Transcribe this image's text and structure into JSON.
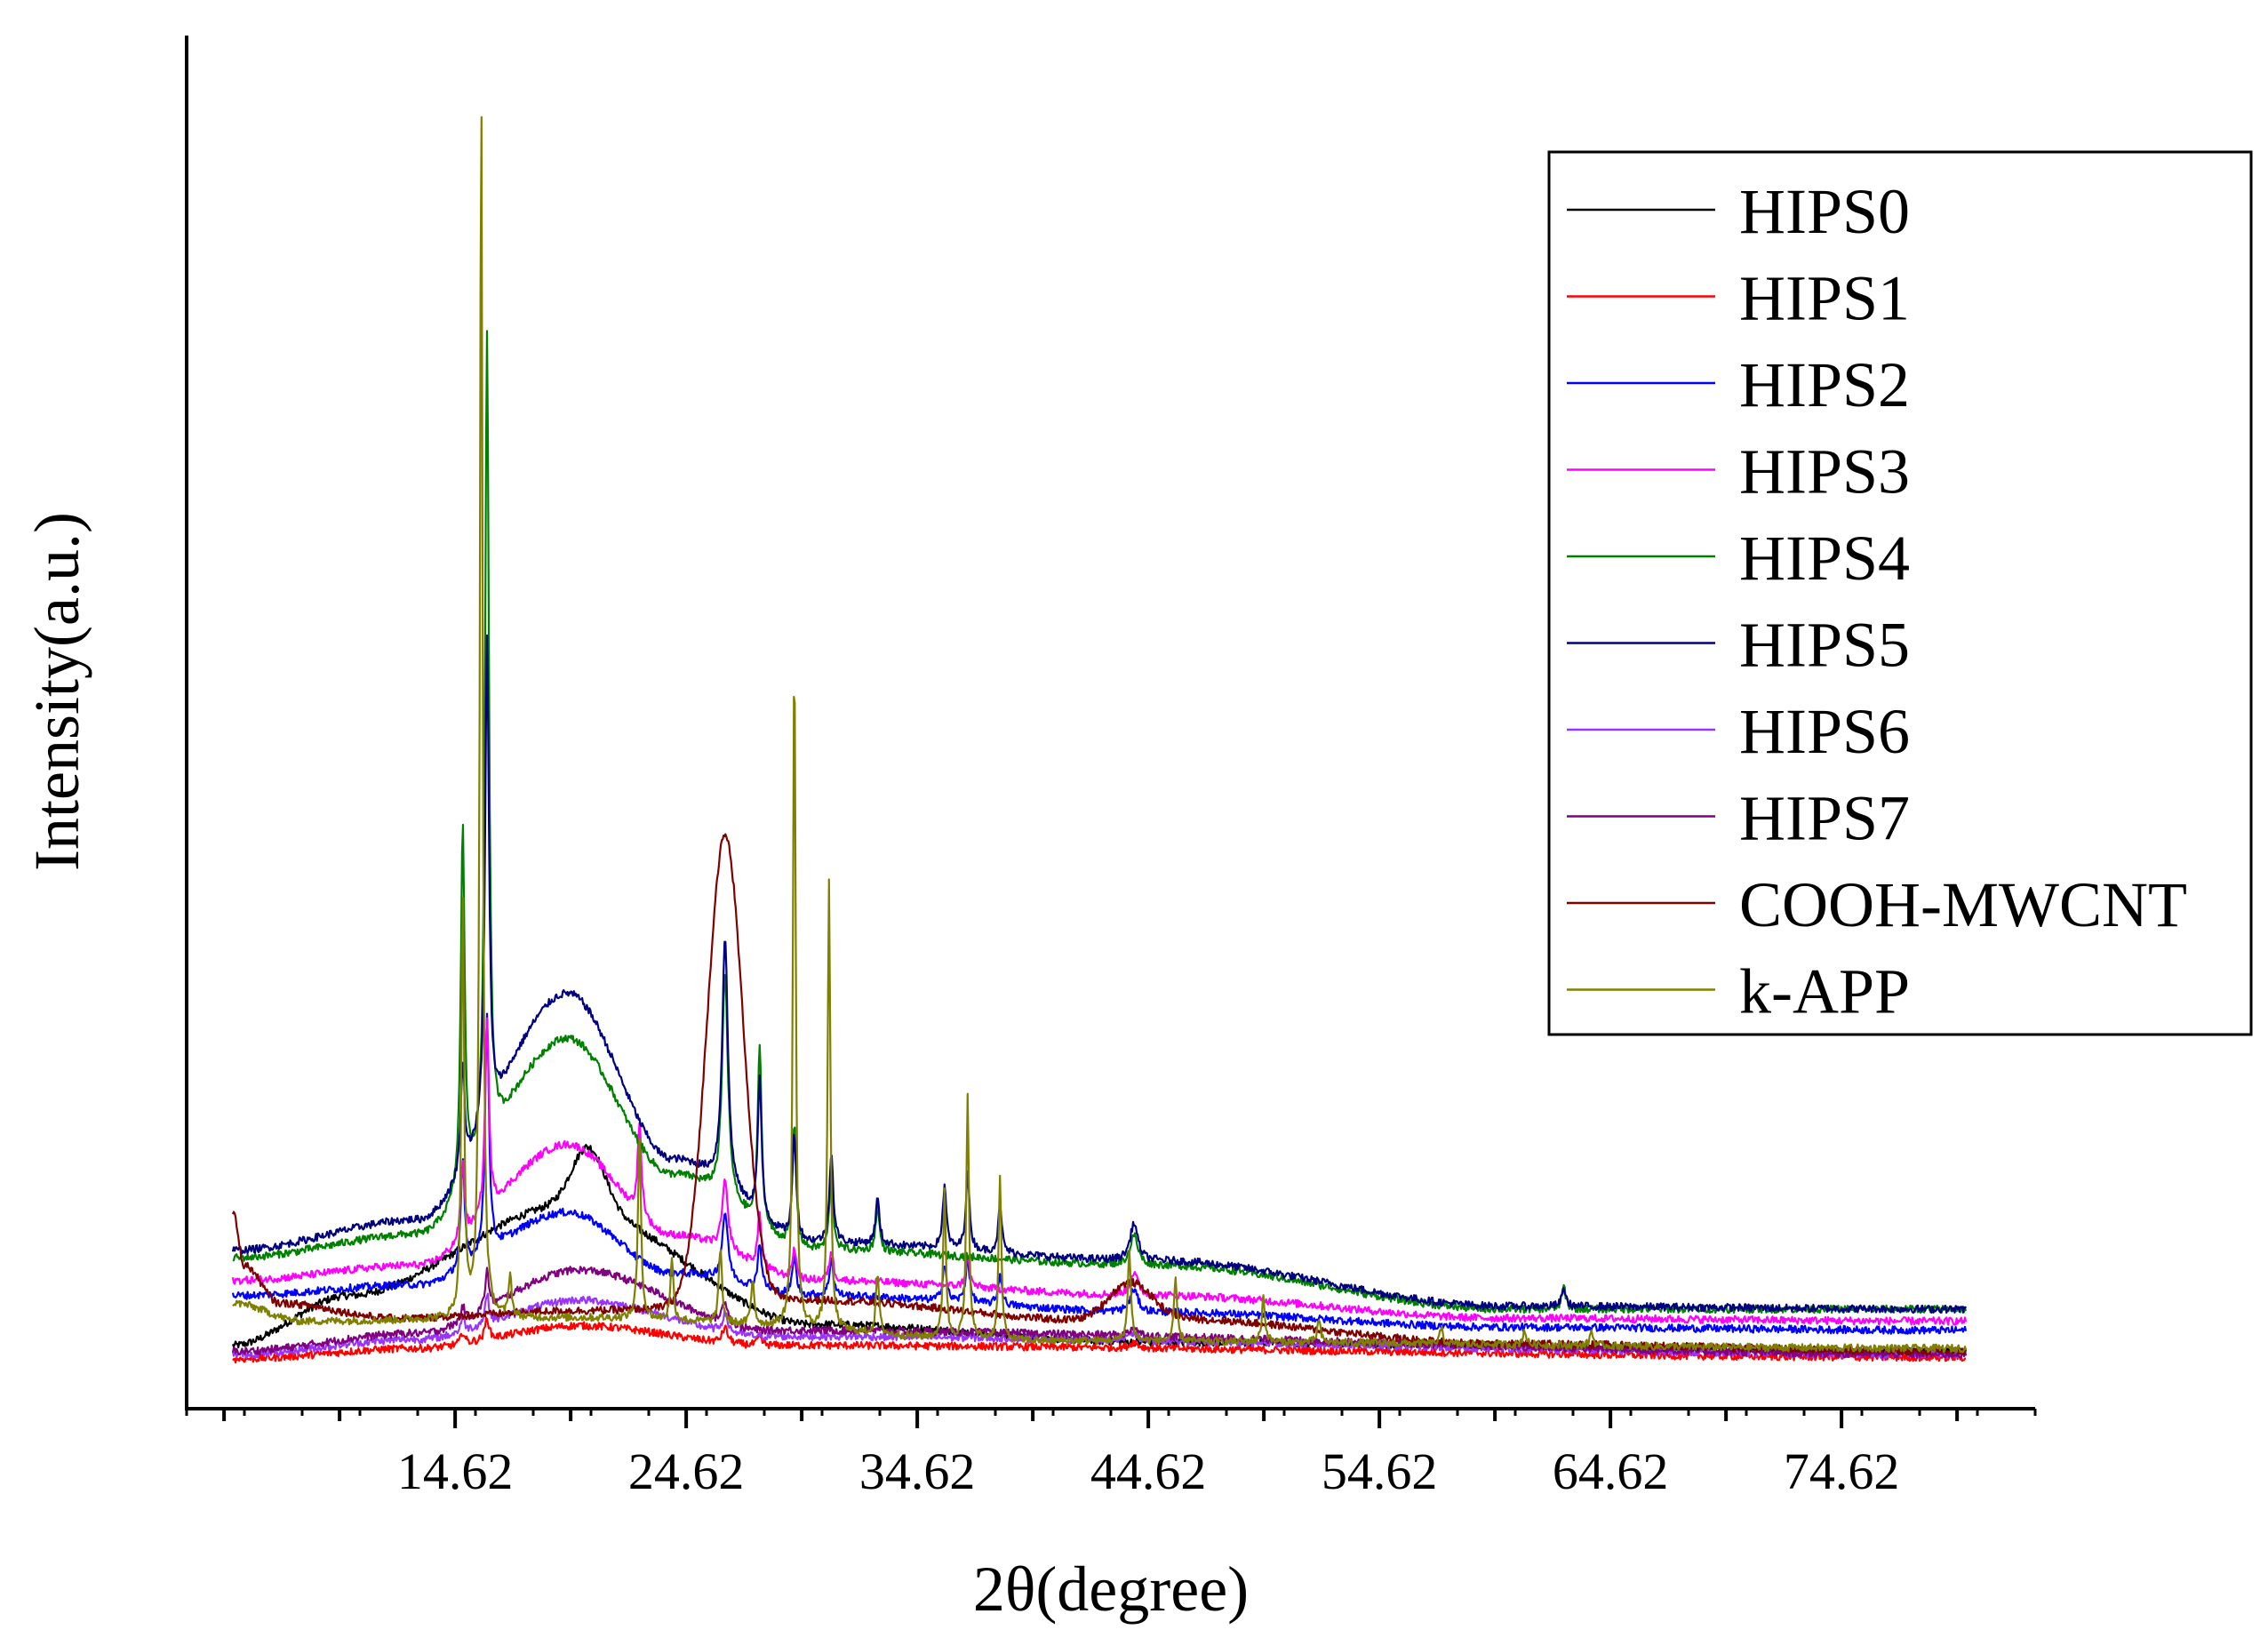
{
  "chart_data": {
    "type": "line",
    "title": "",
    "xlabel": "2θ(degree)",
    "ylabel": "Intensity(a.u.)",
    "xlim": [
      3.0,
      83.0
    ],
    "ylim": [
      -0.3,
      8.8
    ],
    "x_tick_labels": [
      "14.62",
      "24.62",
      "34.62",
      "44.62",
      "54.62",
      "64.62",
      "74.62"
    ],
    "x_ticks": [
      14.62,
      24.62,
      34.62,
      44.62,
      54.62,
      64.62,
      74.62
    ],
    "x_minor_ticks": [
      4.62,
      9.62,
      19.62,
      29.62,
      39.62,
      49.62,
      59.62,
      69.62,
      79.62
    ],
    "x_range": [
      5.0,
      80.0
    ],
    "legend": {
      "position": "top-right"
    },
    "series": [
      {
        "name": "HIPS0",
        "color": "#000000",
        "baseline": [
          [
            5,
            0.12
          ],
          [
            10,
            0.45
          ],
          [
            19.5,
            1.05
          ],
          [
            30,
            0.26
          ],
          [
            45,
            0.14
          ],
          [
            80,
            0.08
          ]
        ],
        "humps": [
          [
            20.4,
            0.4,
            1.0
          ]
        ],
        "peaks": []
      },
      {
        "name": "HIPS1",
        "color": "#ff0000",
        "baseline": [
          [
            5,
            0.03
          ],
          [
            13,
            0.1
          ],
          [
            20,
            0.25
          ],
          [
            28,
            0.12
          ],
          [
            80,
            0.04
          ]
        ],
        "humps": [],
        "peaks": [
          [
            14.95,
            0.08,
            0.1
          ],
          [
            16.0,
            0.15,
            0.1
          ],
          [
            26.3,
            0.1,
            0.15
          ],
          [
            27.8,
            0.06,
            0.1
          ],
          [
            44.0,
            0.04,
            0.2
          ]
        ]
      },
      {
        "name": "HIPS2",
        "color": "#0000ff",
        "baseline": [
          [
            5,
            0.45
          ],
          [
            13,
            0.52
          ],
          [
            19.5,
            1.0
          ],
          [
            24,
            0.6
          ],
          [
            30,
            0.45
          ],
          [
            45,
            0.34
          ],
          [
            60,
            0.24
          ],
          [
            80,
            0.22
          ]
        ],
        "humps": [],
        "peaks": [
          [
            14.95,
            0.7,
            0.1
          ],
          [
            16.0,
            1.6,
            0.1
          ],
          [
            26.3,
            0.45,
            0.15
          ],
          [
            27.8,
            0.3,
            0.1
          ],
          [
            29.3,
            0.25,
            0.1
          ],
          [
            30.9,
            0.25,
            0.1
          ],
          [
            35.8,
            0.25,
            0.1
          ],
          [
            36.8,
            0.3,
            0.1
          ],
          [
            38.2,
            0.2,
            0.1
          ],
          [
            44.0,
            0.15,
            0.2
          ]
        ]
      },
      {
        "name": "HIPS3",
        "color": "#ff00ff",
        "baseline": [
          [
            5,
            0.55
          ],
          [
            13,
            0.65
          ],
          [
            19.5,
            1.45
          ],
          [
            24,
            0.85
          ],
          [
            30,
            0.55
          ],
          [
            45,
            0.45
          ],
          [
            60,
            0.3
          ],
          [
            80,
            0.28
          ]
        ],
        "humps": [],
        "peaks": [
          [
            14.95,
            0.5,
            0.1
          ],
          [
            16.0,
            1.3,
            0.1
          ],
          [
            22.6,
            0.6,
            0.1
          ],
          [
            26.3,
            0.45,
            0.15
          ],
          [
            27.8,
            0.35,
            0.1
          ],
          [
            29.3,
            0.2,
            0.1
          ],
          [
            30.9,
            0.2,
            0.1
          ],
          [
            36.8,
            0.2,
            0.1
          ],
          [
            44.0,
            0.15,
            0.2
          ]
        ]
      },
      {
        "name": "HIPS4",
        "color": "#008000",
        "baseline": [
          [
            5,
            0.7
          ],
          [
            13,
            0.85
          ],
          [
            19.5,
            2.15
          ],
          [
            24,
            1.25
          ],
          [
            30,
            0.75
          ],
          [
            45,
            0.65
          ],
          [
            60,
            0.36
          ],
          [
            80,
            0.36
          ]
        ],
        "humps": [],
        "peaks": [
          [
            14.95,
            2.4,
            0.1
          ],
          [
            16.0,
            5.4,
            0.1
          ],
          [
            26.3,
            1.5,
            0.15
          ],
          [
            27.8,
            1.2,
            0.1
          ],
          [
            29.3,
            0.8,
            0.1
          ],
          [
            30.9,
            0.5,
            0.1
          ],
          [
            32.9,
            0.3,
            0.1
          ],
          [
            44.0,
            0.2,
            0.2
          ],
          [
            62.6,
            0.15,
            0.1
          ]
        ]
      },
      {
        "name": "HIPS5",
        "color": "#000080",
        "baseline": [
          [
            5,
            0.75
          ],
          [
            13,
            0.95
          ],
          [
            19.5,
            2.45
          ],
          [
            24,
            1.35
          ],
          [
            30,
            0.8
          ],
          [
            45,
            0.68
          ],
          [
            60,
            0.38
          ],
          [
            80,
            0.36
          ]
        ],
        "humps": [],
        "peaks": [
          [
            14.95,
            0.7,
            0.1
          ],
          [
            16.0,
            3.2,
            0.1
          ],
          [
            26.3,
            1.65,
            0.15
          ],
          [
            27.8,
            0.9,
            0.1
          ],
          [
            29.3,
            0.7,
            0.1
          ],
          [
            30.9,
            0.6,
            0.1
          ],
          [
            32.9,
            0.3,
            0.1
          ],
          [
            35.8,
            0.4,
            0.1
          ],
          [
            36.8,
            0.5,
            0.1
          ],
          [
            38.2,
            0.3,
            0.1
          ],
          [
            44.0,
            0.25,
            0.2
          ],
          [
            62.6,
            0.12,
            0.1
          ]
        ]
      },
      {
        "name": "HIPS6",
        "color": "#9933ff",
        "baseline": [
          [
            5,
            0.06
          ],
          [
            13,
            0.16
          ],
          [
            20,
            0.42
          ],
          [
            28,
            0.18
          ],
          [
            80,
            0.06
          ]
        ],
        "humps": [],
        "peaks": [
          [
            14.95,
            0.1,
            0.1
          ],
          [
            16.0,
            0.2,
            0.1
          ],
          [
            26.3,
            0.12,
            0.15
          ],
          [
            44.0,
            0.05,
            0.2
          ]
        ]
      },
      {
        "name": "HIPS7",
        "color": "#800080",
        "baseline": [
          [
            5,
            0.08
          ],
          [
            13,
            0.2
          ],
          [
            20,
            0.62
          ],
          [
            28,
            0.22
          ],
          [
            80,
            0.06
          ]
        ],
        "humps": [],
        "peaks": [
          [
            14.95,
            0.1,
            0.1
          ],
          [
            16.0,
            0.25,
            0.1
          ],
          [
            26.3,
            0.15,
            0.15
          ],
          [
            44.0,
            0.06,
            0.2
          ]
        ]
      },
      {
        "name": "COOH-MWCNT",
        "color": "#800000",
        "baseline": [
          [
            5,
            1.0
          ],
          [
            5.5,
            0.65
          ],
          [
            7,
            0.4
          ],
          [
            12,
            0.3
          ],
          [
            20,
            0.35
          ],
          [
            30,
            0.42
          ],
          [
            43,
            0.28
          ],
          [
            45,
            0.3
          ],
          [
            60,
            0.13
          ],
          [
            80,
            0.08
          ]
        ],
        "humps": [
          [
            26.3,
            3.1,
            1.1
          ],
          [
            43.8,
            0.25,
            1.3
          ]
        ],
        "peaks": []
      },
      {
        "name": "k-APP",
        "color": "#808000",
        "baseline": [
          [
            5,
            0.4
          ],
          [
            8,
            0.28
          ],
          [
            20,
            0.3
          ],
          [
            40,
            0.15
          ],
          [
            80,
            0.1
          ]
        ],
        "humps": [],
        "peaks": [
          [
            14.95,
            2.8,
            0.07
          ],
          [
            15.75,
            8.1,
            0.07
          ],
          [
            17.0,
            0.3,
            0.07
          ],
          [
            22.6,
            1.2,
            0.08
          ],
          [
            24.0,
            0.4,
            0.08
          ],
          [
            26.1,
            0.5,
            0.08
          ],
          [
            27.5,
            0.3,
            0.08
          ],
          [
            29.3,
            4.5,
            0.07
          ],
          [
            30.8,
            3.0,
            0.07
          ],
          [
            32.9,
            0.4,
            0.08
          ],
          [
            35.8,
            1.0,
            0.07
          ],
          [
            36.8,
            1.6,
            0.07
          ],
          [
            38.2,
            1.1,
            0.07
          ],
          [
            43.8,
            0.6,
            0.08
          ],
          [
            45.8,
            0.4,
            0.08
          ],
          [
            49.6,
            0.3,
            0.08
          ],
          [
            52.0,
            0.15,
            0.08
          ],
          [
            57.3,
            0.1,
            0.08
          ],
          [
            60.9,
            0.1,
            0.08
          ],
          [
            63.8,
            0.1,
            0.08
          ]
        ]
      }
    ]
  }
}
